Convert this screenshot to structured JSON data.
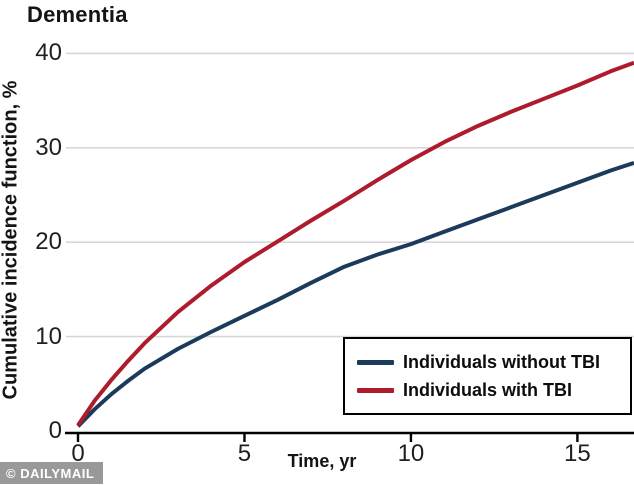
{
  "title": "Dementia",
  "watermark": "© DAILYMAIL",
  "colors": {
    "with_tbi": "#AE1B2C",
    "without_tbi": "#1C3A5C",
    "grid": "#D7D7D7",
    "axis": "#000000",
    "text": "#1F1F1F"
  },
  "legend": {
    "items": [
      {
        "label": "Individuals without TBI"
      },
      {
        "label": "Individuals with TBI"
      }
    ]
  },
  "chart_data": {
    "type": "line",
    "title": "Dementia",
    "xlabel": "Time, yr",
    "ylabel": "Cumulative incidence function, %",
    "xlim": [
      0,
      16.7
    ],
    "ylim": [
      0,
      40
    ],
    "x_ticks": [
      0,
      5,
      10,
      15
    ],
    "y_ticks": [
      0,
      10,
      20,
      30,
      40
    ],
    "grid": "horizontal gridlines at each y tick",
    "legend_position": "inset bottom-right, boxed",
    "x": [
      0,
      0.5,
      1,
      1.5,
      2,
      3,
      4,
      5,
      6,
      7,
      8,
      9,
      10,
      11,
      12,
      13,
      14,
      15,
      16,
      16.7
    ],
    "series": [
      {
        "name": "Individuals without TBI",
        "color": "#1C3A5C",
        "values": [
          0.5,
          2.3,
          3.9,
          5.3,
          6.6,
          8.7,
          10.5,
          12.2,
          13.9,
          15.7,
          17.4,
          18.7,
          19.8,
          21.1,
          22.4,
          23.7,
          25.0,
          26.3,
          27.6,
          28.4
        ]
      },
      {
        "name": "Individuals with TBI",
        "color": "#AE1B2C",
        "values": [
          0.6,
          3.2,
          5.4,
          7.4,
          9.3,
          12.6,
          15.4,
          17.9,
          20.1,
          22.3,
          24.4,
          26.6,
          28.7,
          30.6,
          32.3,
          33.8,
          35.2,
          36.6,
          38.1,
          39.0
        ]
      }
    ]
  }
}
